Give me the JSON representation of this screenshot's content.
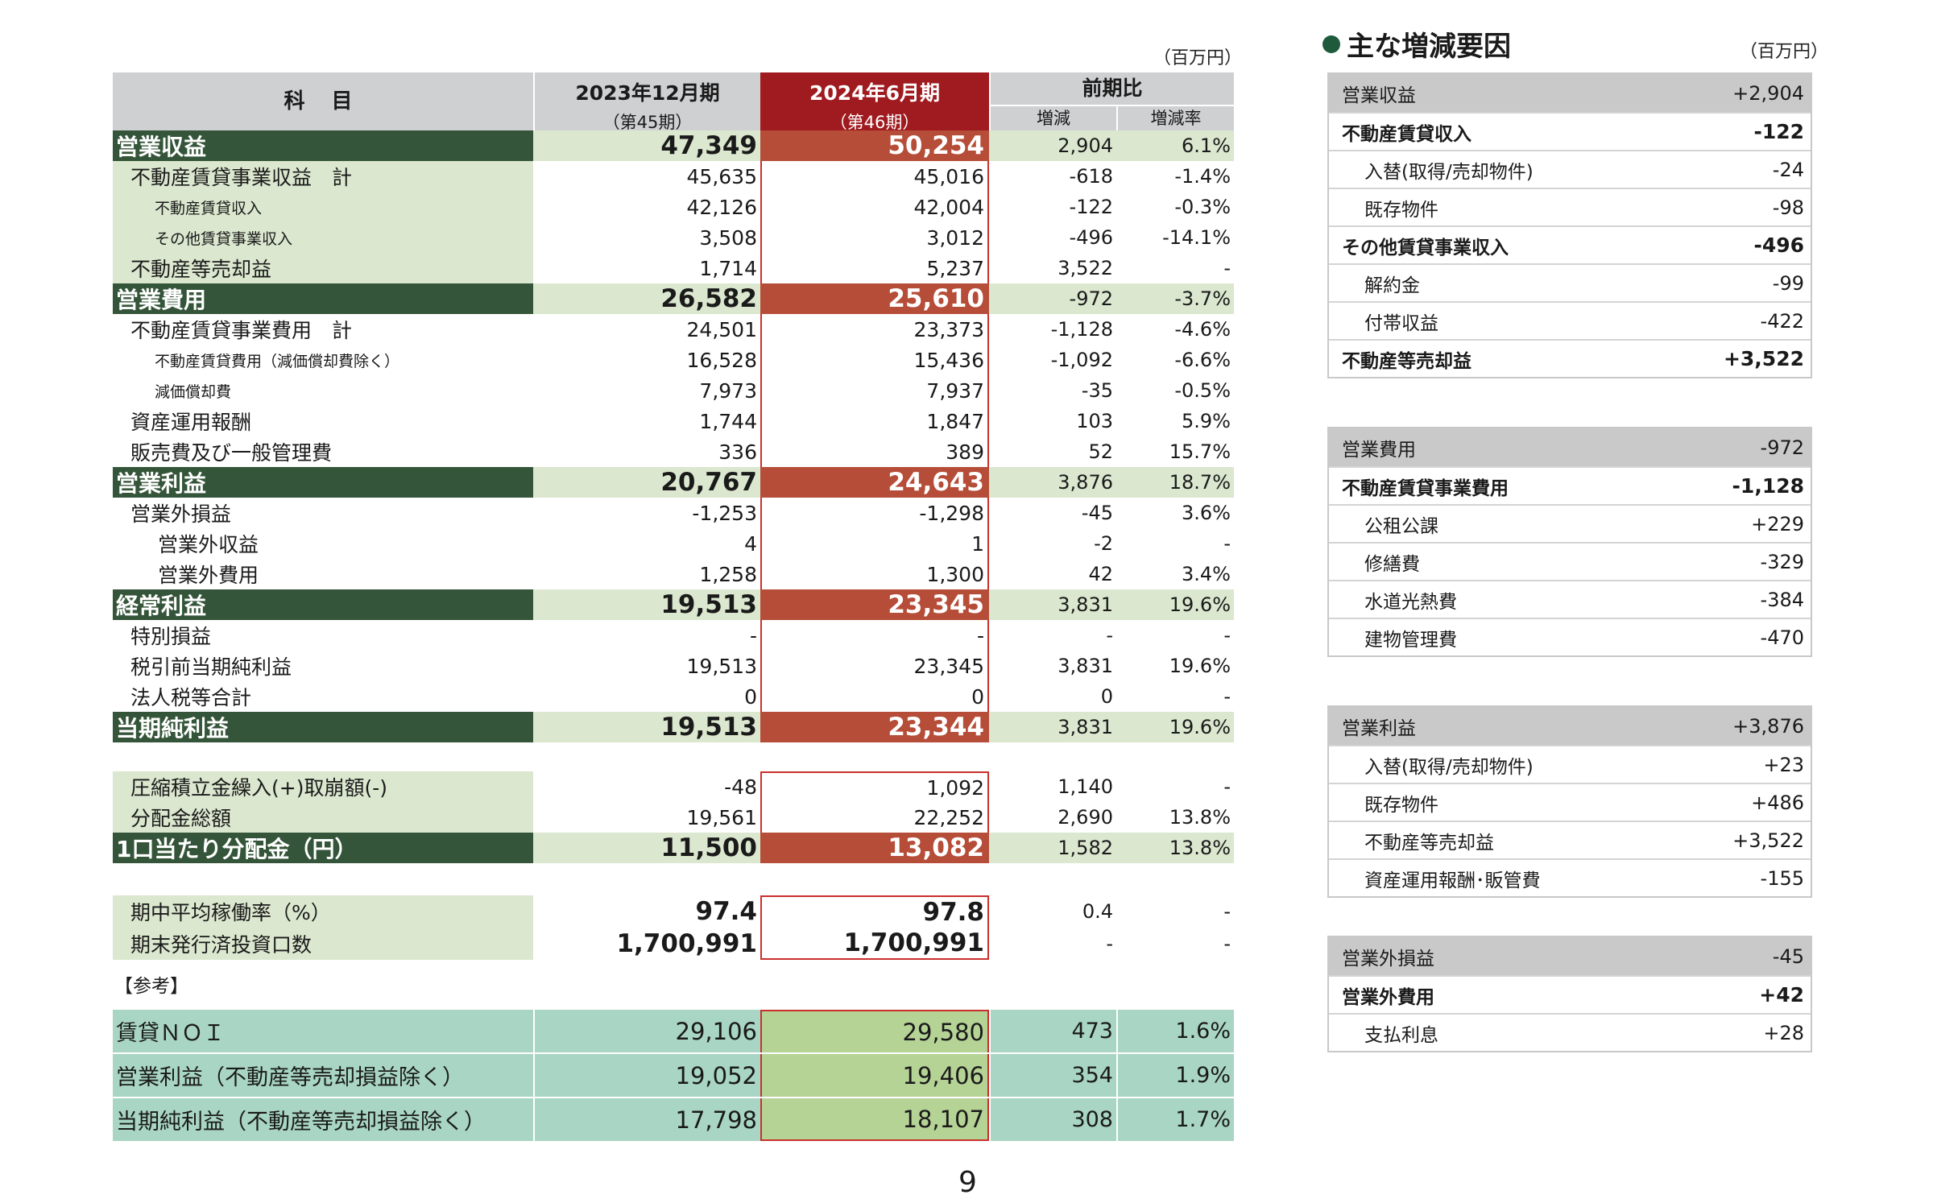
{
  "unit_label": "（百万円）",
  "header": {
    "subject": "科 目",
    "prev_period": "2023年12月期",
    "prev_sub": "（第45期）",
    "curr_period": "2024年6月期",
    "curr_sub": "（第46期）",
    "compare": "前期比",
    "change": "増減",
    "change_rate": "増減率"
  },
  "rows": [
    {
      "label": "営業収益",
      "prev": "47,349",
      "curr": "50,254",
      "chg": "2,904",
      "rate": "6.1%"
    },
    {
      "label": "不動産賃貸事業収益　計",
      "prev": "45,635",
      "curr": "45,016",
      "chg": "-618",
      "rate": "-1.4%"
    },
    {
      "label": "不動産賃貸収入",
      "prev": "42,126",
      "curr": "42,004",
      "chg": "-122",
      "rate": "-0.3%"
    },
    {
      "label": "その他賃貸事業収入",
      "prev": "3,508",
      "curr": "3,012",
      "chg": "-496",
      "rate": "-14.1%"
    },
    {
      "label": "不動産等売却益",
      "prev": "1,714",
      "curr": "5,237",
      "chg": "3,522",
      "rate": "-"
    },
    {
      "label": "営業費用",
      "prev": "26,582",
      "curr": "25,610",
      "chg": "-972",
      "rate": "-3.7%"
    },
    {
      "label": "不動産賃貸事業費用　計",
      "prev": "24,501",
      "curr": "23,373",
      "chg": "-1,128",
      "rate": "-4.6%"
    },
    {
      "label": "不動産賃貸費用（減価償却費除く）",
      "prev": "16,528",
      "curr": "15,436",
      "chg": "-1,092",
      "rate": "-6.6%"
    },
    {
      "label": "減価償却費",
      "prev": "7,973",
      "curr": "7,937",
      "chg": "-35",
      "rate": "-0.5%"
    },
    {
      "label": "資産運用報酬",
      "prev": "1,744",
      "curr": "1,847",
      "chg": "103",
      "rate": "5.9%"
    },
    {
      "label": "販売費及び一般管理費",
      "prev": "336",
      "curr": "389",
      "chg": "52",
      "rate": "15.7%"
    },
    {
      "label": "営業利益",
      "prev": "20,767",
      "curr": "24,643",
      "chg": "3,876",
      "rate": "18.7%"
    },
    {
      "label": "営業外損益",
      "prev": "-1,253",
      "curr": "-1,298",
      "chg": "-45",
      "rate": "3.6%"
    },
    {
      "label": "営業外収益",
      "prev": "4",
      "curr": "1",
      "chg": "-2",
      "rate": "-"
    },
    {
      "label": "営業外費用",
      "prev": "1,258",
      "curr": "1,300",
      "chg": "42",
      "rate": "3.4%"
    },
    {
      "label": "経常利益",
      "prev": "19,513",
      "curr": "23,345",
      "chg": "3,831",
      "rate": "19.6%"
    },
    {
      "label": "特別損益",
      "prev": "-",
      "curr": "-",
      "chg": "-",
      "rate": "-"
    },
    {
      "label": "税引前当期純利益",
      "prev": "19,513",
      "curr": "23,345",
      "chg": "3,831",
      "rate": "19.6%"
    },
    {
      "label": "法人税等合計",
      "prev": "0",
      "curr": "0",
      "chg": "0",
      "rate": "-"
    },
    {
      "label": "当期純利益",
      "prev": "19,513",
      "curr": "23,344",
      "chg": "3,831",
      "rate": "19.6%"
    },
    {
      "label": "圧縮積立金繰入(+)取崩額(-)",
      "prev": "-48",
      "curr": "1,092",
      "chg": "1,140",
      "rate": "-"
    },
    {
      "label": "分配金総額",
      "prev": "19,561",
      "curr": "22,252",
      "chg": "2,690",
      "rate": "13.8%"
    },
    {
      "label": "1口当たり分配金（円）",
      "prev": "11,500",
      "curr": "13,082",
      "chg": "1,582",
      "rate": "13.8%"
    },
    {
      "label": "期中平均稼働率（%）",
      "prev": "97.4",
      "curr": "97.8",
      "chg": "0.4",
      "rate": "-"
    },
    {
      "label": "期末発行済投資口数",
      "prev": "1,700,991",
      "curr": "1,700,991",
      "chg": "-",
      "rate": "-"
    }
  ],
  "reference_label": "【参考】",
  "reference_rows": [
    {
      "label": "賃貸ＮＯＩ",
      "prev": "29,106",
      "curr": "29,580",
      "chg": "473",
      "rate": "1.6%"
    },
    {
      "label": "営業利益（不動産等売却損益除く）",
      "prev": "19,052",
      "curr": "19,406",
      "chg": "354",
      "rate": "1.9%"
    },
    {
      "label": "当期純利益（不動産等売却損益除く）",
      "prev": "17,798",
      "curr": "18,107",
      "chg": "308",
      "rate": "1.7%"
    }
  ],
  "page_number": "9",
  "right_panel": {
    "title": "主な増減要因",
    "unit": "（百万円）",
    "groups": [
      {
        "items": [
          {
            "label": "営業収益",
            "value": "+2,904"
          },
          {
            "label": "不動産賃貸収入",
            "value": "-122"
          },
          {
            "label": "入替(取得/売却物件)",
            "value": "-24"
          },
          {
            "label": "既存物件",
            "value": "-98"
          },
          {
            "label": "その他賃貸事業収入",
            "value": "-496"
          },
          {
            "label": "解約金",
            "value": "-99"
          },
          {
            "label": "付帯収益",
            "value": "-422"
          },
          {
            "label": "不動産等売却益",
            "value": "+3,522"
          }
        ]
      },
      {
        "items": [
          {
            "label": "営業費用",
            "value": "-972"
          },
          {
            "label": "不動産賃貸事業費用",
            "value": "-1,128"
          },
          {
            "label": "公租公課",
            "value": "+229"
          },
          {
            "label": "修繕費",
            "value": "-329"
          },
          {
            "label": "水道光熱費",
            "value": "-384"
          },
          {
            "label": "建物管理費",
            "value": "-470"
          }
        ]
      },
      {
        "items": [
          {
            "label": "営業利益",
            "value": "+3,876"
          },
          {
            "label": "入替(取得/売却物件)",
            "value": "+23"
          },
          {
            "label": "既存物件",
            "value": "+486"
          },
          {
            "label": "不動産等売却益",
            "value": "+3,522"
          },
          {
            "label": "資産運用報酬･販管費",
            "value": "-155"
          }
        ]
      },
      {
        "items": [
          {
            "label": "営業外損益",
            "value": "-45"
          },
          {
            "label": "営業外費用",
            "value": "+42"
          },
          {
            "label": "支払利息",
            "value": "+28"
          }
        ]
      }
    ]
  }
}
